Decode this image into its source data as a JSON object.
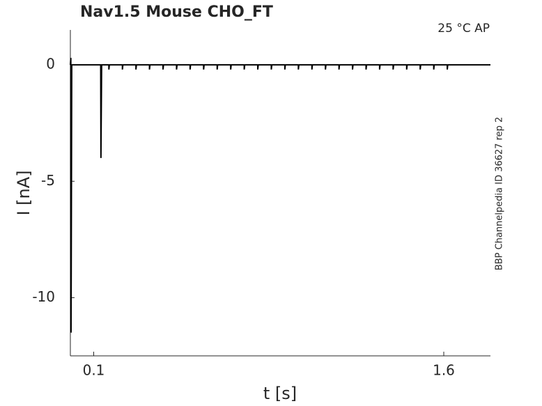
{
  "chart_data": {
    "type": "line",
    "title": "Nav1.5  Mouse  CHO_FT",
    "annotation": "25 °C  AP",
    "side_label": "BBP Channelpedia ID 36627 rep 2",
    "x_label": "t [s]",
    "y_label": "I [nA]",
    "xlim": [
      0,
      1.8
    ],
    "ylim": [
      -12.5,
      1.5
    ],
    "xticks": [
      0.1,
      1.6
    ],
    "yticks": [
      0,
      -5,
      -10
    ],
    "x": [
      0,
      0.002,
      0.003,
      0.006,
      0.13,
      0.131,
      0.134,
      0.165,
      0.165,
      0.167,
      0.223,
      0.223,
      0.225,
      0.281,
      0.281,
      0.283,
      0.339,
      0.339,
      0.341,
      0.397,
      0.397,
      0.399,
      0.455,
      0.455,
      0.457,
      0.513,
      0.513,
      0.515,
      0.571,
      0.571,
      0.573,
      0.629,
      0.629,
      0.631,
      0.687,
      0.687,
      0.689,
      0.745,
      0.745,
      0.747,
      0.803,
      0.803,
      0.805,
      0.861,
      0.861,
      0.863,
      0.919,
      0.919,
      0.921,
      0.977,
      0.977,
      0.979,
      1.035,
      1.035,
      1.037,
      1.093,
      1.093,
      1.095,
      1.151,
      1.151,
      1.153,
      1.209,
      1.209,
      1.211,
      1.267,
      1.267,
      1.269,
      1.325,
      1.325,
      1.327,
      1.383,
      1.383,
      1.385,
      1.441,
      1.441,
      1.443,
      1.499,
      1.499,
      1.501,
      1.557,
      1.557,
      1.559,
      1.615,
      1.615,
      1.617,
      1.8
    ],
    "series": [
      {
        "color": "#000000",
        "values": [
          0,
          0.3,
          -11.5,
          0,
          0,
          -4,
          0,
          0,
          -0.2,
          0,
          0,
          -0.2,
          0,
          0,
          -0.2,
          0,
          0,
          -0.2,
          0,
          0,
          -0.2,
          0,
          0,
          -0.2,
          0,
          0,
          -0.2,
          0,
          0,
          -0.2,
          0,
          0,
          -0.2,
          0,
          0,
          -0.2,
          0,
          0,
          -0.2,
          0,
          0,
          -0.2,
          0,
          0,
          -0.2,
          0,
          0,
          -0.2,
          0,
          0,
          -0.2,
          0,
          0,
          -0.2,
          0,
          0,
          -0.2,
          0,
          0,
          -0.2,
          0,
          0,
          -0.2,
          0,
          0,
          -0.2,
          0,
          0,
          -0.2,
          0,
          0,
          -0.2,
          0,
          0,
          -0.2,
          0,
          0,
          -0.2,
          0,
          0,
          -0.2,
          0,
          0,
          -0.2,
          0,
          0
        ]
      }
    ]
  }
}
